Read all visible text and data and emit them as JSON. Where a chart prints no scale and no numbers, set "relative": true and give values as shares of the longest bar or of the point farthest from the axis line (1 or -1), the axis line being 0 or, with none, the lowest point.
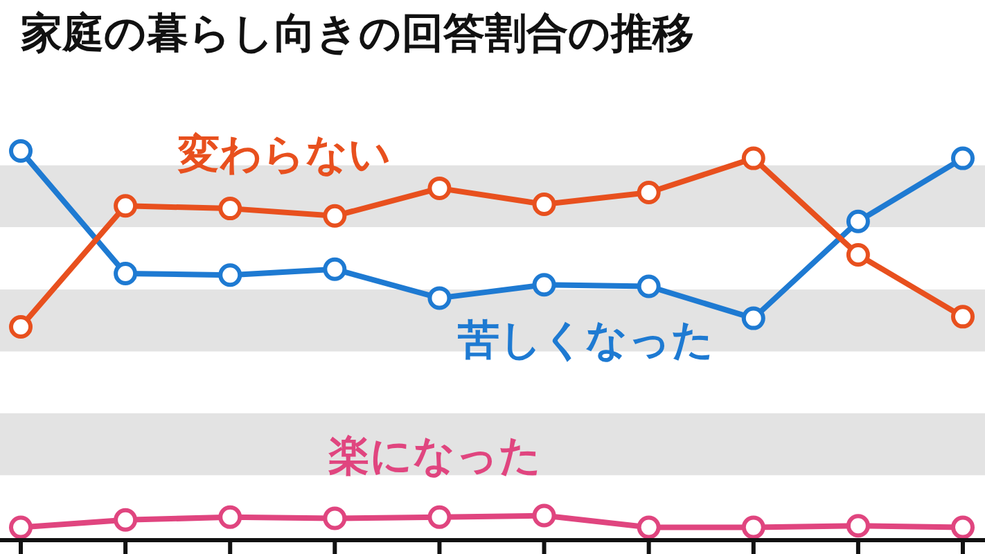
{
  "chart_data": {
    "type": "line",
    "title": "家庭の暮らし向きの回答割合の推移",
    "relative": true,
    "categories": [
      null,
      null,
      null,
      null,
      null,
      null,
      null,
      null,
      null,
      null
    ],
    "series": [
      {
        "name": "変わらない",
        "color": "#e8501e",
        "values": [
          0.548,
          0.859,
          0.852,
          0.833,
          0.904,
          0.863,
          0.893,
          0.981,
          0.733,
          0.574
        ]
      },
      {
        "name": "苦しくなった",
        "color": "#1e7ad2",
        "values": [
          1,
          0.685,
          0.681,
          0.696,
          0.622,
          0.656,
          0.652,
          0.57,
          0.819,
          0.981
        ]
      },
      {
        "name": "楽になった",
        "color": "#e0457f",
        "values": [
          0.033,
          0.052,
          0.059,
          0.056,
          0.059,
          0.063,
          0.033,
          0.033,
          0.037,
          0.033
        ]
      }
    ],
    "bands": [
      {
        "axis": "y",
        "from": 0.804,
        "to": 0.963,
        "color": "#e3e3e3"
      },
      {
        "axis": "y",
        "from": 0.485,
        "to": 0.644,
        "color": "#e3e3e3"
      },
      {
        "axis": "y",
        "from": 0.167,
        "to": 0.326,
        "color": "#e3e3e3"
      }
    ],
    "marker": "circle",
    "legend": false,
    "grid": false
  }
}
